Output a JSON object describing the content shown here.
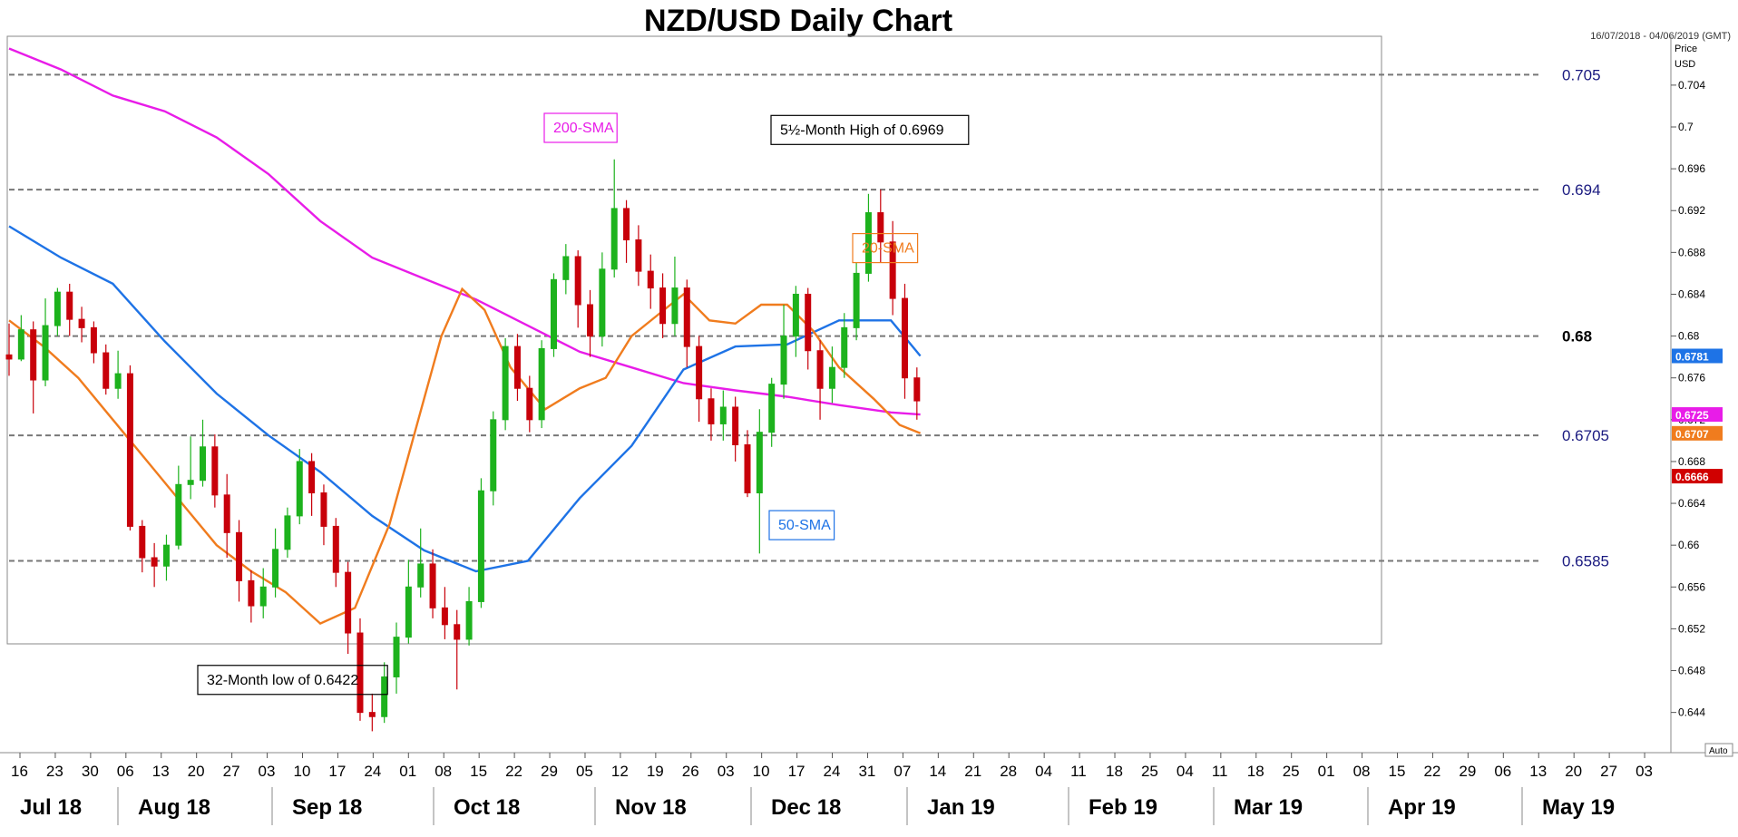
{
  "chart_data": {
    "type": "candlestick",
    "title": "NZD/USD Daily Chart",
    "date_range": "16/07/2018 - 04/06/2019 (GMT)",
    "price_label": "Price",
    "currency_label": "USD",
    "auto_label": "Auto",
    "ylim": [
      0.6405,
      0.7085
    ],
    "y_ticks": [
      0.644,
      0.648,
      0.652,
      0.656,
      0.66,
      0.664,
      0.668,
      0.672,
      0.676,
      0.68,
      0.684,
      0.688,
      0.692,
      0.696,
      0.7,
      0.704
    ],
    "y_tick_labels": [
      "0.644",
      "0.648",
      "0.652",
      "0.656",
      "0.66",
      "0.664",
      "0.668",
      "0.672",
      "0.676",
      "0.68",
      "0.684",
      "0.688",
      "0.692",
      "0.696",
      "0.7",
      "0.704"
    ],
    "x_day_labels": [
      "16",
      "23",
      "30",
      "06",
      "13",
      "20",
      "27",
      "03",
      "10",
      "17",
      "24",
      "01",
      "08",
      "15",
      "22",
      "29",
      "05",
      "12",
      "19",
      "26",
      "03",
      "10",
      "17",
      "24",
      "31",
      "07",
      "14",
      "21",
      "28",
      "04",
      "11",
      "18",
      "25",
      "04",
      "11",
      "18",
      "25",
      "01",
      "08",
      "15",
      "22",
      "29",
      "06",
      "13",
      "20",
      "27",
      "03"
    ],
    "x_month_labels": [
      "Jul 18",
      "Aug 18",
      "Sep 18",
      "Oct 18",
      "Nov 18",
      "Dec 18",
      "Jan 19",
      "Feb 19",
      "Mar 19",
      "Apr 19",
      "May 19"
    ],
    "horizontal_levels": [
      {
        "value": 0.705,
        "label": "0.705",
        "bold": false
      },
      {
        "value": 0.694,
        "label": "0.694",
        "bold": false
      },
      {
        "value": 0.68,
        "label": "0.68",
        "bold": true
      },
      {
        "value": 0.6705,
        "label": "0.6705",
        "bold": false
      },
      {
        "value": 0.6585,
        "label": "0.6585",
        "bold": false
      }
    ],
    "price_tags": [
      {
        "value": 0.6781,
        "label": "0.6781",
        "color": "#1e73e6"
      },
      {
        "value": 0.6725,
        "label": "0.6725",
        "color": "#e81ce8"
      },
      {
        "value": 0.6707,
        "label": "0.6707",
        "color": "#f07c1e"
      },
      {
        "value": 0.6666,
        "label": "0.6666",
        "color": "#d00000"
      }
    ],
    "series": [
      {
        "name": "200-SMA",
        "color": "#e81ce8",
        "points": [
          [
            0,
            0.7075
          ],
          [
            30,
            0.7055
          ],
          [
            60,
            0.703
          ],
          [
            90,
            0.7015
          ],
          [
            120,
            0.699
          ],
          [
            150,
            0.6955
          ],
          [
            180,
            0.691
          ],
          [
            210,
            0.6875
          ],
          [
            240,
            0.6855
          ],
          [
            270,
            0.6835
          ],
          [
            300,
            0.681
          ],
          [
            330,
            0.6785
          ],
          [
            360,
            0.677
          ],
          [
            390,
            0.6755
          ],
          [
            420,
            0.6748
          ],
          [
            450,
            0.6742
          ],
          [
            480,
            0.6734
          ],
          [
            510,
            0.6727
          ],
          [
            527,
            0.6725
          ]
        ]
      },
      {
        "name": "50-SMA",
        "color": "#1e73e6",
        "points": [
          [
            0,
            0.6905
          ],
          [
            30,
            0.6875
          ],
          [
            60,
            0.685
          ],
          [
            90,
            0.6795
          ],
          [
            120,
            0.6745
          ],
          [
            150,
            0.6705
          ],
          [
            180,
            0.667
          ],
          [
            210,
            0.6628
          ],
          [
            240,
            0.6595
          ],
          [
            270,
            0.6575
          ],
          [
            300,
            0.6585
          ],
          [
            330,
            0.6645
          ],
          [
            360,
            0.6695
          ],
          [
            390,
            0.6768
          ],
          [
            420,
            0.679
          ],
          [
            450,
            0.6792
          ],
          [
            480,
            0.6815
          ],
          [
            510,
            0.6815
          ],
          [
            527,
            0.6781
          ]
        ]
      },
      {
        "name": "20-SMA",
        "color": "#f07c1e",
        "points": [
          [
            0,
            0.6815
          ],
          [
            20,
            0.679
          ],
          [
            40,
            0.676
          ],
          [
            60,
            0.672
          ],
          [
            80,
            0.668
          ],
          [
            100,
            0.664
          ],
          [
            120,
            0.66
          ],
          [
            140,
            0.6575
          ],
          [
            160,
            0.6555
          ],
          [
            180,
            0.6525
          ],
          [
            200,
            0.654
          ],
          [
            220,
            0.662
          ],
          [
            240,
            0.674
          ],
          [
            250,
            0.68
          ],
          [
            262,
            0.6845
          ],
          [
            275,
            0.6825
          ],
          [
            290,
            0.677
          ],
          [
            310,
            0.673
          ],
          [
            330,
            0.675
          ],
          [
            345,
            0.676
          ],
          [
            360,
            0.68
          ],
          [
            375,
            0.682
          ],
          [
            390,
            0.684
          ],
          [
            405,
            0.6815
          ],
          [
            420,
            0.6812
          ],
          [
            435,
            0.683
          ],
          [
            450,
            0.683
          ],
          [
            465,
            0.6805
          ],
          [
            480,
            0.677
          ],
          [
            500,
            0.674
          ],
          [
            515,
            0.6715
          ],
          [
            527,
            0.6707
          ]
        ]
      }
    ],
    "candles": [
      [
        0,
        0.6782,
        0.6778,
        0.6812,
        0.6762
      ],
      [
        7,
        0.6778,
        0.6806,
        0.682,
        0.6776
      ],
      [
        14,
        0.6806,
        0.6758,
        0.6814,
        0.6726
      ],
      [
        21,
        0.6758,
        0.681,
        0.6836,
        0.6752
      ],
      [
        28,
        0.681,
        0.6842,
        0.6846,
        0.68
      ],
      [
        35,
        0.6842,
        0.6816,
        0.685,
        0.68
      ],
      [
        42,
        0.6816,
        0.6808,
        0.6828,
        0.6794
      ],
      [
        49,
        0.6808,
        0.6784,
        0.6814,
        0.6774
      ],
      [
        56,
        0.6784,
        0.675,
        0.6792,
        0.6744
      ],
      [
        63,
        0.675,
        0.6764,
        0.6786,
        0.674
      ],
      [
        70,
        0.6764,
        0.6618,
        0.6772,
        0.6614
      ],
      [
        77,
        0.6618,
        0.6588,
        0.6624,
        0.6574
      ],
      [
        84,
        0.6588,
        0.658,
        0.6602,
        0.656
      ],
      [
        91,
        0.658,
        0.66,
        0.661,
        0.6566
      ],
      [
        98,
        0.66,
        0.6658,
        0.6676,
        0.6596
      ],
      [
        105,
        0.6658,
        0.6662,
        0.6704,
        0.6644
      ],
      [
        112,
        0.6662,
        0.6694,
        0.672,
        0.6656
      ],
      [
        119,
        0.6694,
        0.6648,
        0.6706,
        0.6636
      ],
      [
        126,
        0.6648,
        0.6612,
        0.6668,
        0.6588
      ],
      [
        133,
        0.6612,
        0.6566,
        0.6624,
        0.6546
      ],
      [
        140,
        0.6566,
        0.6542,
        0.6576,
        0.6526
      ],
      [
        147,
        0.6542,
        0.656,
        0.6578,
        0.653
      ],
      [
        154,
        0.656,
        0.6596,
        0.6616,
        0.655
      ],
      [
        161,
        0.6596,
        0.6628,
        0.6636,
        0.6588
      ],
      [
        168,
        0.6628,
        0.668,
        0.6692,
        0.662
      ],
      [
        175,
        0.668,
        0.665,
        0.6688,
        0.6628
      ],
      [
        182,
        0.665,
        0.6618,
        0.6658,
        0.66
      ],
      [
        189,
        0.6618,
        0.6574,
        0.6626,
        0.656
      ],
      [
        196,
        0.6574,
        0.6516,
        0.6584,
        0.6496
      ],
      [
        203,
        0.6516,
        0.644,
        0.653,
        0.6432
      ],
      [
        210,
        0.644,
        0.6436,
        0.6458,
        0.6422
      ],
      [
        217,
        0.6436,
        0.6474,
        0.6488,
        0.643
      ],
      [
        224,
        0.6474,
        0.6512,
        0.6526,
        0.6458
      ],
      [
        231,
        0.6512,
        0.656,
        0.6586,
        0.6506
      ],
      [
        238,
        0.656,
        0.6582,
        0.6616,
        0.655
      ],
      [
        245,
        0.6582,
        0.654,
        0.6596,
        0.653
      ],
      [
        252,
        0.654,
        0.6524,
        0.656,
        0.651
      ],
      [
        259,
        0.6524,
        0.651,
        0.6538,
        0.6462
      ],
      [
        266,
        0.651,
        0.6546,
        0.656,
        0.6504
      ],
      [
        273,
        0.6546,
        0.6652,
        0.6664,
        0.654
      ],
      [
        280,
        0.6652,
        0.672,
        0.6728,
        0.6638
      ],
      [
        287,
        0.672,
        0.679,
        0.6798,
        0.671
      ],
      [
        294,
        0.679,
        0.675,
        0.6802,
        0.6738
      ],
      [
        301,
        0.675,
        0.672,
        0.6762,
        0.6708
      ],
      [
        308,
        0.672,
        0.6788,
        0.6796,
        0.6712
      ],
      [
        315,
        0.6788,
        0.6854,
        0.686,
        0.678
      ],
      [
        322,
        0.6854,
        0.6876,
        0.6888,
        0.684
      ],
      [
        329,
        0.6876,
        0.683,
        0.6882,
        0.6808
      ],
      [
        336,
        0.683,
        0.68,
        0.6844,
        0.678
      ],
      [
        343,
        0.68,
        0.6864,
        0.688,
        0.679
      ],
      [
        350,
        0.6864,
        0.6922,
        0.6969,
        0.6856
      ],
      [
        357,
        0.6922,
        0.6892,
        0.693,
        0.687
      ],
      [
        364,
        0.6892,
        0.6862,
        0.6906,
        0.6848
      ],
      [
        371,
        0.6862,
        0.6846,
        0.6878,
        0.6826
      ],
      [
        378,
        0.6846,
        0.6812,
        0.686,
        0.6798
      ],
      [
        385,
        0.6812,
        0.6846,
        0.6876,
        0.68
      ],
      [
        392,
        0.6846,
        0.679,
        0.6854,
        0.677
      ],
      [
        399,
        0.679,
        0.674,
        0.68,
        0.6718
      ],
      [
        406,
        0.674,
        0.6716,
        0.675,
        0.67
      ],
      [
        413,
        0.6716,
        0.6732,
        0.6748,
        0.67
      ],
      [
        420,
        0.6732,
        0.6696,
        0.6742,
        0.668
      ],
      [
        427,
        0.6696,
        0.665,
        0.671,
        0.6646
      ],
      [
        434,
        0.665,
        0.6708,
        0.673,
        0.6592
      ],
      [
        441,
        0.6708,
        0.6754,
        0.676,
        0.6694
      ],
      [
        448,
        0.6754,
        0.68,
        0.683,
        0.674
      ],
      [
        455,
        0.68,
        0.684,
        0.6848,
        0.678
      ],
      [
        462,
        0.684,
        0.6786,
        0.6846,
        0.6768
      ],
      [
        469,
        0.6786,
        0.675,
        0.6796,
        0.672
      ],
      [
        476,
        0.675,
        0.677,
        0.679,
        0.6736
      ],
      [
        483,
        0.677,
        0.6808,
        0.6822,
        0.676
      ],
      [
        490,
        0.6808,
        0.686,
        0.687,
        0.6796
      ],
      [
        497,
        0.686,
        0.6918,
        0.6936,
        0.6852
      ],
      [
        504,
        0.6918,
        0.689,
        0.694,
        0.687
      ],
      [
        511,
        0.689,
        0.6836,
        0.691,
        0.682
      ],
      [
        518,
        0.6836,
        0.676,
        0.685,
        0.674
      ],
      [
        525,
        0.676,
        0.6738,
        0.677,
        0.672
      ]
    ],
    "annotations": [
      {
        "label": "200-SMA",
        "color": "#e81ce8",
        "border": "#e81ce8",
        "value": 0.7
      },
      {
        "label": "5½-Month High of 0.6969",
        "color": "#000000",
        "border": "#000000",
        "value": 0.6998
      },
      {
        "label": "20-SMA",
        "color": "#f07c1e",
        "border": "#f07c1e",
        "value": 0.6885
      },
      {
        "label": "50-SMA",
        "color": "#1e73e6",
        "border": "#1e73e6",
        "value": 0.662
      },
      {
        "label": "32-Month low of 0.6422",
        "color": "#000000",
        "border": "#000000",
        "value": 0.6472
      }
    ],
    "grid": false,
    "up_color": "#1db21d",
    "down_color": "#c8000a"
  }
}
